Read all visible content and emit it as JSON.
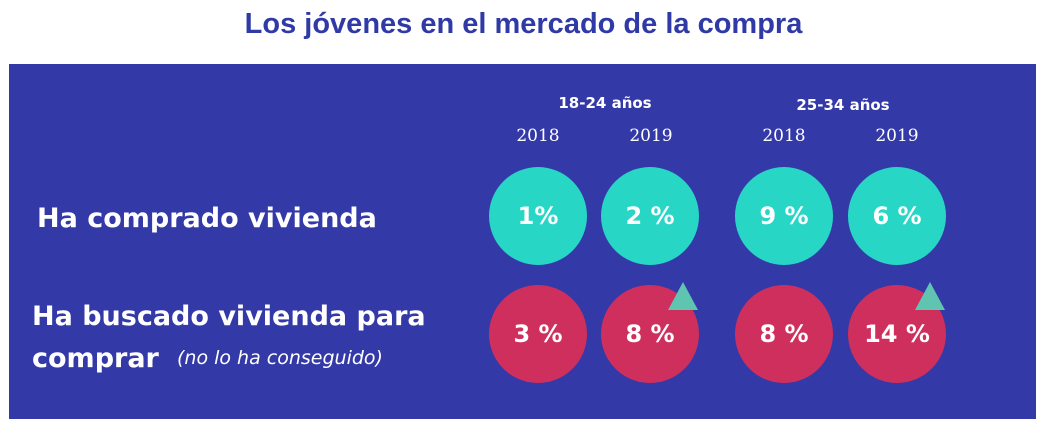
{
  "chart_data": {
    "type": "table",
    "title": "Los jóvenes en el mercado de la compra",
    "groups": [
      {
        "label": "18-24 años",
        "years": [
          "2018",
          "2019"
        ]
      },
      {
        "label": "25-34 años",
        "years": [
          "2018",
          "2019"
        ]
      }
    ],
    "rows": [
      {
        "label": "Ha comprado vivienda",
        "label_line2": "",
        "note": "",
        "values": [
          "1%",
          "2 %",
          "9 %",
          "6 %"
        ],
        "color": "#28d6c6",
        "increase_marker": [
          false,
          false,
          false,
          false
        ]
      },
      {
        "label": "Ha buscado vivienda para",
        "label_line2": "comprar",
        "note": "(no lo ha conseguido)",
        "values": [
          "3 %",
          "8 %",
          "8 %",
          "14 %"
        ],
        "color": "#cf2f5d",
        "increase_marker": [
          false,
          true,
          false,
          true
        ]
      }
    ],
    "colors": {
      "background": "#3439a8",
      "title": "#2f3aa6",
      "marker": "#5fc4b0"
    }
  }
}
